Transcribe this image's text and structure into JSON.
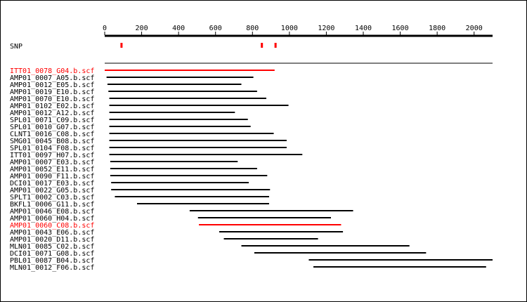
{
  "colors": {
    "default_read": "#000000",
    "highlight_read": "#ff0000",
    "snp": "#ff0000",
    "axis": "#000000"
  },
  "axis": {
    "min": 0,
    "max": 2100,
    "ticks": [
      0,
      200,
      400,
      600,
      800,
      1000,
      1200,
      1400,
      1600,
      1800,
      2000
    ],
    "tick_labels": [
      "0",
      "200",
      "400",
      "600",
      "800",
      "1000",
      "1200",
      "1400",
      "1600",
      "1800",
      "2000"
    ]
  },
  "snp": {
    "label": "SNP",
    "positions": [
      91,
      851,
      925
    ]
  },
  "reads": [
    {
      "name": "ITT01_0078_G04.b.scf",
      "start": 0,
      "end": 920,
      "highlight": true
    },
    {
      "name": "AMP01_0007_A05.b.scf",
      "start": 10,
      "end": 805,
      "highlight": false
    },
    {
      "name": "AMP01_0012_E05.b.scf",
      "start": 15,
      "end": 740,
      "highlight": false
    },
    {
      "name": "AMP01_0019_E10.b.scf",
      "start": 20,
      "end": 825,
      "highlight": false
    },
    {
      "name": "AMP01_0070_E10.b.scf",
      "start": 25,
      "end": 875,
      "highlight": false
    },
    {
      "name": "AMP01_0102_E02.b.scf",
      "start": 25,
      "end": 995,
      "highlight": false
    },
    {
      "name": "AMP01_0012_A12.b.scf",
      "start": 25,
      "end": 705,
      "highlight": false
    },
    {
      "name": "SPL01_0071_C09.b.scf",
      "start": 25,
      "end": 775,
      "highlight": false
    },
    {
      "name": "SPL01_0010_G07.b.scf",
      "start": 25,
      "end": 790,
      "highlight": false
    },
    {
      "name": "CLNT1_0016_C08.b.scf",
      "start": 25,
      "end": 915,
      "highlight": false
    },
    {
      "name": "SMG01_0045_B08.b.scf",
      "start": 25,
      "end": 985,
      "highlight": false
    },
    {
      "name": "SPL01_0104_F08.b.scf",
      "start": 25,
      "end": 985,
      "highlight": false
    },
    {
      "name": "ITT01_0097_H07.b.scf",
      "start": 25,
      "end": 1070,
      "highlight": false
    },
    {
      "name": "AMP01_0007_E03.b.scf",
      "start": 30,
      "end": 720,
      "highlight": false
    },
    {
      "name": "AMP01_0052_E11.b.scf",
      "start": 30,
      "end": 825,
      "highlight": false
    },
    {
      "name": "AMP01_0090_F11.b.scf",
      "start": 30,
      "end": 880,
      "highlight": false
    },
    {
      "name": "DCI01_0017_E03.b.scf",
      "start": 35,
      "end": 780,
      "highlight": false
    },
    {
      "name": "AMP01_0022_G05.b.scf",
      "start": 35,
      "end": 895,
      "highlight": false
    },
    {
      "name": "SPLT1_0002_C03.b.scf",
      "start": 55,
      "end": 890,
      "highlight": false
    },
    {
      "name": "BKFL1_0006_G11.b.scf",
      "start": 175,
      "end": 890,
      "highlight": false
    },
    {
      "name": "AMP01_0046_E08.b.scf",
      "start": 460,
      "end": 1345,
      "highlight": false
    },
    {
      "name": "AMP01_0060_H04.b.scf",
      "start": 505,
      "end": 1225,
      "highlight": false
    },
    {
      "name": "AMP01_0060_C08.b.scf",
      "start": 510,
      "end": 1280,
      "highlight": true
    },
    {
      "name": "AMP01_0043_E06.b.scf",
      "start": 620,
      "end": 1290,
      "highlight": false
    },
    {
      "name": "AMP01_0020_D11.b.scf",
      "start": 645,
      "end": 1155,
      "highlight": false
    },
    {
      "name": "MLN01_0085_C02.b.scf",
      "start": 740,
      "end": 1650,
      "highlight": false
    },
    {
      "name": "DCI01_0071_G08.b.scf",
      "start": 810,
      "end": 1740,
      "highlight": false
    },
    {
      "name": "PBL01_0087_B04.b.scf",
      "start": 1105,
      "end": 2100,
      "highlight": false
    },
    {
      "name": "MLN01_0012_F06.b.scf",
      "start": 1130,
      "end": 2065,
      "highlight": false
    }
  ]
}
